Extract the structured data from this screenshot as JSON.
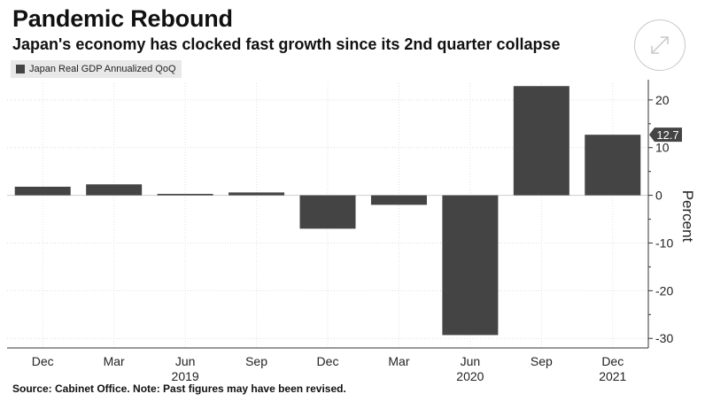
{
  "header": {
    "title": "Pandemic Rebound",
    "subtitle": "Japan's economy has clocked fast growth since its 2nd quarter collapse"
  },
  "legend": {
    "label": "Japan Real GDP Annualized QoQ",
    "color": "#444444"
  },
  "footer": {
    "source": "Source: Cabinet Office. Note: Past figures may have been revised."
  },
  "controls": {
    "expand_icon": "expand-arrows-icon"
  },
  "chart_data": {
    "type": "bar",
    "categories": [
      "Dec",
      "Mar",
      "Jun",
      "Sep",
      "Dec",
      "Mar",
      "Jun",
      "Sep",
      "Dec"
    ],
    "year_labels": [
      {
        "category_index": 2,
        "label": "2019"
      },
      {
        "category_index": 6,
        "label": "2020"
      },
      {
        "category_index": 8,
        "label": "2021"
      }
    ],
    "series": [
      {
        "name": "Japan Real GDP Annualized QoQ",
        "values": [
          1.8,
          2.3,
          0.3,
          0.6,
          -7.0,
          -2.0,
          -29.3,
          22.9,
          12.7
        ]
      }
    ],
    "last_value_label": "12.7",
    "ylabel": "Percent",
    "yticks": [
      20,
      10,
      0,
      -10,
      -20,
      -30
    ],
    "ylim": [
      -32,
      23.5
    ],
    "bar_color": "#444444",
    "grid": true
  }
}
